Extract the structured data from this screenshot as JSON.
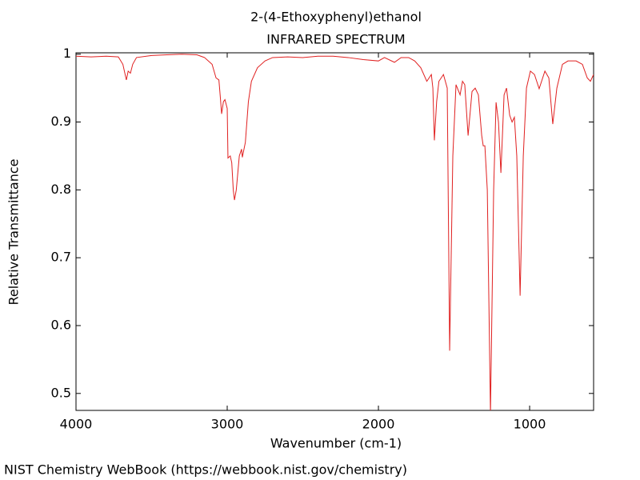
{
  "chart_data": {
    "type": "line",
    "title": "2-(4-Ethoxyphenyl)ethanol",
    "subtitle": "INFRARED SPECTRUM",
    "x_label": "Wavenumber (cm-1)",
    "y_label": "Relative Transmittance",
    "source": "NIST Chemistry WebBook (https://webbook.nist.gov/chemistry)",
    "color": "#e02020",
    "xlim": [
      4000,
      577
    ],
    "ylim": [
      0.475,
      1.002
    ],
    "xticks": [
      4000,
      3000,
      2000,
      1000
    ],
    "yticks": [
      0.5,
      0.6,
      0.7,
      0.8,
      0.9,
      1
    ],
    "x": [
      4000,
      3900,
      3800,
      3720,
      3690,
      3667,
      3655,
      3640,
      3625,
      3600,
      3500,
      3400,
      3300,
      3200,
      3150,
      3100,
      3074,
      3055,
      3045,
      3037,
      3025,
      3015,
      3000,
      2995,
      2980,
      2970,
      2960,
      2952,
      2940,
      2920,
      2905,
      2900,
      2880,
      2860,
      2840,
      2800,
      2750,
      2700,
      2600,
      2500,
      2400,
      2300,
      2200,
      2100,
      2000,
      1960,
      1894,
      1850,
      1800,
      1760,
      1720,
      1680,
      1650,
      1640,
      1630,
      1615,
      1600,
      1570,
      1545,
      1529,
      1508,
      1487,
      1460,
      1444,
      1429,
      1407,
      1381,
      1360,
      1339,
      1317,
      1307,
      1296,
      1280,
      1259,
      1238,
      1222,
      1206,
      1190,
      1169,
      1153,
      1132,
      1116,
      1101,
      1085,
      1063,
      1042,
      1021,
      995,
      968,
      937,
      899,
      873,
      847,
      820,
      783,
      746,
      693,
      651,
      619,
      598,
      577
    ],
    "values": [
      0.997,
      0.996,
      0.997,
      0.996,
      0.985,
      0.962,
      0.975,
      0.972,
      0.985,
      0.995,
      0.998,
      0.999,
      1.0,
      0.999,
      0.995,
      0.985,
      0.965,
      0.962,
      0.935,
      0.912,
      0.93,
      0.933,
      0.92,
      0.847,
      0.85,
      0.84,
      0.8,
      0.785,
      0.8,
      0.85,
      0.86,
      0.848,
      0.87,
      0.93,
      0.96,
      0.98,
      0.99,
      0.995,
      0.996,
      0.995,
      0.997,
      0.997,
      0.995,
      0.992,
      0.99,
      0.995,
      0.988,
      0.995,
      0.995,
      0.99,
      0.98,
      0.96,
      0.97,
      0.95,
      0.873,
      0.93,
      0.96,
      0.97,
      0.95,
      0.563,
      0.85,
      0.955,
      0.94,
      0.96,
      0.955,
      0.88,
      0.945,
      0.95,
      0.94,
      0.88,
      0.865,
      0.865,
      0.8,
      0.47,
      0.8,
      0.929,
      0.9,
      0.825,
      0.94,
      0.95,
      0.91,
      0.9,
      0.907,
      0.85,
      0.644,
      0.85,
      0.95,
      0.975,
      0.97,
      0.949,
      0.975,
      0.965,
      0.897,
      0.95,
      0.985,
      0.99,
      0.99,
      0.985,
      0.965,
      0.96,
      0.97
    ]
  }
}
